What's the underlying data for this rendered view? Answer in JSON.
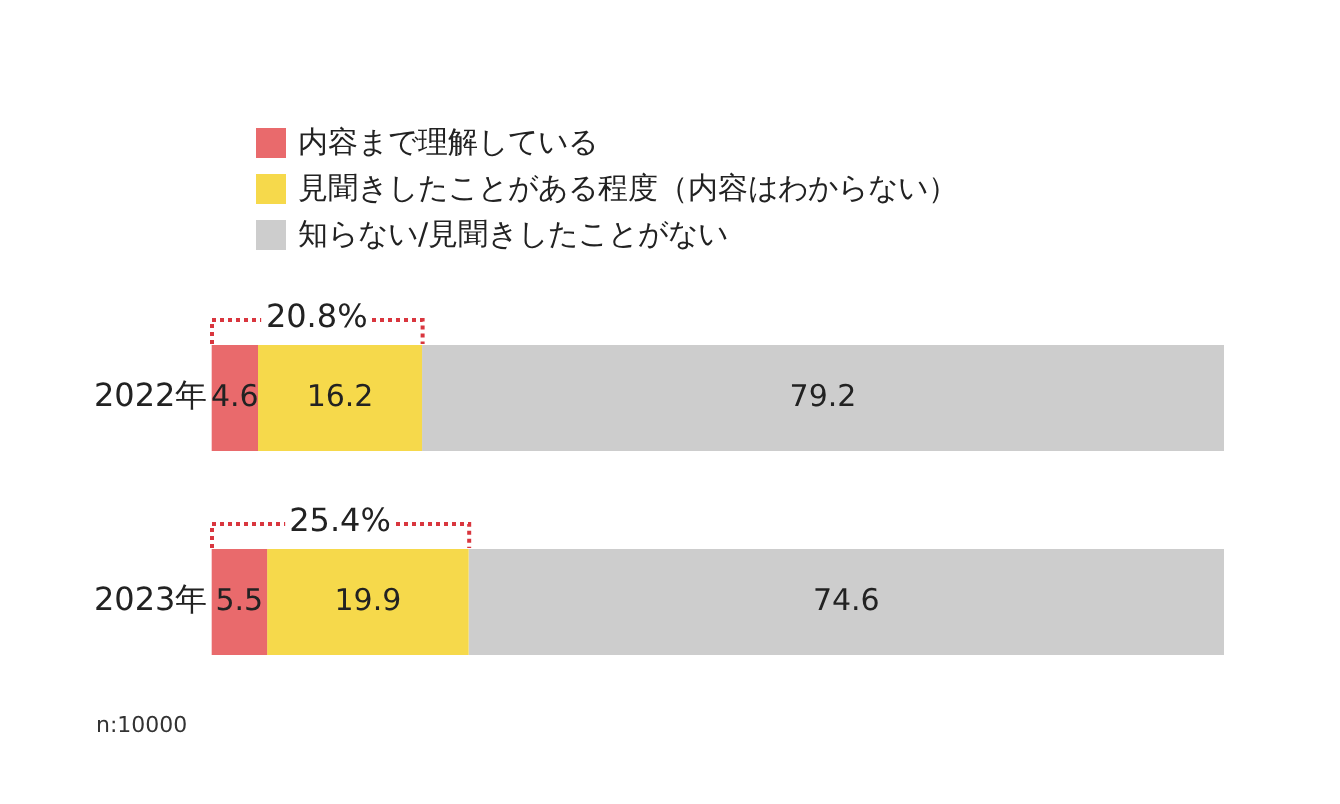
{
  "chart_data": {
    "type": "bar",
    "orientation": "horizontal",
    "stacked": true,
    "categories": [
      "2022年",
      "2023年"
    ],
    "series": [
      {
        "name": "内容まで理解している",
        "color": "#e96a6c",
        "values": [
          4.6,
          5.5
        ]
      },
      {
        "name": "見聞きしたことがある程度（内容はわからない）",
        "color": "#f6d94b",
        "values": [
          16.2,
          19.9
        ]
      },
      {
        "name": "知らない/見聞きしたことがない",
        "color": "#cdcdcd",
        "values": [
          79.2,
          74.6
        ]
      }
    ],
    "xlim": [
      0,
      100
    ],
    "tick_labels": "y",
    "grid": false,
    "legend": "top left",
    "data_labels": true,
    "annotations": [
      "20.8%",
      "25.4%",
      "n:10000"
    ]
  }
}
